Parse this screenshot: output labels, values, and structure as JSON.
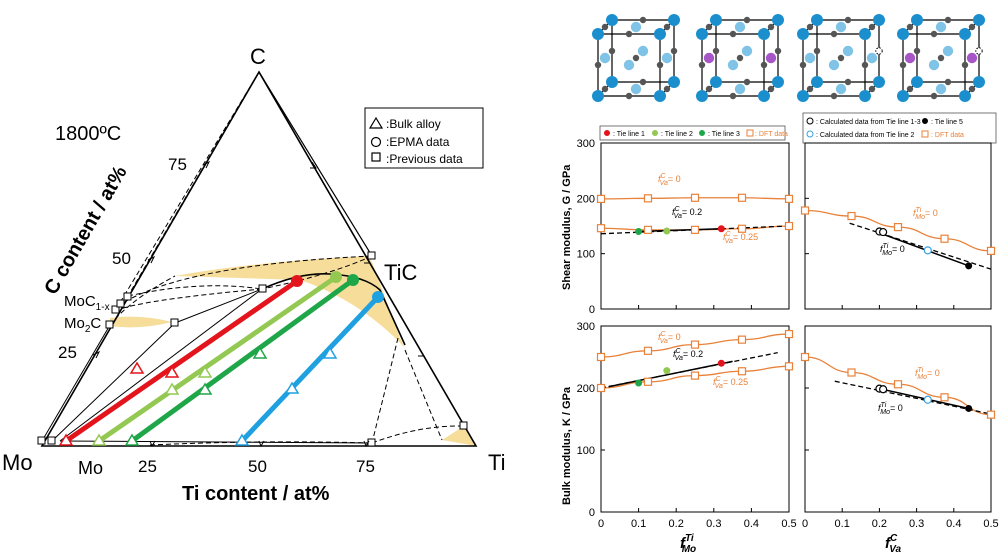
{
  "ternary": {
    "temperature_label": "1800ºC",
    "vertex_C": "C",
    "vertex_Mo": "Mo",
    "vertex_Ti": "Ti",
    "mo_bottom_label": "Mo",
    "phase_TiC": "TiC",
    "phase_MoC": "MoC",
    "phase_MoC_sub": "1-x",
    "phase_Mo2C_a": "Mo",
    "phase_Mo2C_sub": "2",
    "phase_Mo2C_b": "C",
    "x_axis_label": "Ti content / at%",
    "y_axis_label": "C content / at%",
    "bottom_ticks": [
      "25",
      "50",
      "75"
    ],
    "side_ticks": [
      "75",
      "50",
      "25"
    ],
    "legend": [
      {
        "marker": "triangle",
        "label": ":Bulk alloy"
      },
      {
        "marker": "circle",
        "label": ":EPMA data"
      },
      {
        "marker": "square",
        "label": ":Previous data"
      }
    ],
    "tie_line_colors": [
      "#e3141b",
      "#93c952",
      "#1fa648",
      "#1fa0e0"
    ],
    "two_phase_fill": "#f7dd9a"
  },
  "panels": {
    "legend_left": [
      {
        "marker": "filled-circle",
        "color": "#e3141b",
        "label": ": Tie line 1"
      },
      {
        "marker": "filled-circle",
        "color": "#93c952",
        "label": ": Tie line 2"
      },
      {
        "marker": "filled-circle",
        "color": "#1fa648",
        "label": ": Tie line 3"
      },
      {
        "marker": "open-square",
        "color": "#e8823a",
        "label": ": DFT data"
      }
    ],
    "legend_right": [
      {
        "marker": "open-circle",
        "color": "#000000",
        "label": ": Calculated data from Tie line 1-3"
      },
      {
        "marker": "filled-circle",
        "color": "#000000",
        "label": ": Tie line 5"
      },
      {
        "marker": "open-circle",
        "color": "#3aa0e0",
        "label": ": Calculated data from Tie line 2"
      },
      {
        "marker": "open-square",
        "color": "#e8823a",
        "label": ": DFT data"
      }
    ],
    "ylabel_top": "Shear modulus, G / GPa",
    "ylabel_bottom": "Bulk modulus, K / GPa",
    "xlabel_left_f": "f",
    "xlabel_left_sup": "Ti",
    "xlabel_left_sub": "Mo",
    "xlabel_right_f": "f",
    "xlabel_right_sup": "C",
    "xlabel_right_sub": "Va",
    "y_ticks": [
      "0",
      "100",
      "200",
      "300"
    ],
    "x_ticks": [
      "0",
      "0.1",
      "0.2",
      "0.3",
      "0.4",
      "0.5"
    ],
    "annot_va0": "= 0",
    "annot_va02": "= 0.2",
    "annot_va025": "= 0.25",
    "annot_mo0": "= 0",
    "annot_f": "f",
    "annot_C": "C",
    "annot_Va": "Va",
    "annot_Ti": "Ti",
    "annot_Mo": "Mo",
    "dft_color": "#e8823a"
  },
  "crystals": {
    "count": 4,
    "corner_atom_color": "#1b8fce",
    "face_atom_color": "#7fc3e6",
    "carbon_color": "#555555",
    "mo_atom_color": "#a855c8"
  },
  "chart_data": [
    {
      "type": "scatter",
      "title": "",
      "xlabel": "f^Ti_Mo",
      "ylabel": "Shear modulus, G / GPa",
      "xlim": [
        0,
        0.5
      ],
      "ylim": [
        0,
        300
      ],
      "series": [
        {
          "name": ": DFT data",
          "points": [
            [
              0,
              199
            ],
            [
              0.125,
              200
            ],
            [
              0.25,
              201
            ],
            [
              0.375,
              201
            ],
            [
              0.5,
              199
            ]
          ]
        },
        {
          "name": ": DFT data",
          "points": [
            [
              0,
              146
            ],
            [
              0.125,
              143
            ],
            [
              0.25,
              143
            ],
            [
              0.375,
              145
            ],
            [
              0.5,
              150
            ]
          ]
        },
        {
          "name": ": Tie line 1",
          "points": [
            [
              0.32,
              145
            ]
          ]
        },
        {
          "name": ": Tie line 2",
          "points": [
            [
              0.175,
              141
            ]
          ]
        },
        {
          "name": ": Tie line 3",
          "points": [
            [
              0.1,
              140
            ]
          ]
        }
      ]
    },
    {
      "type": "scatter",
      "title": "",
      "xlabel": "f^C_Va",
      "ylabel": "Shear modulus, G / GPa",
      "xlim": [
        0,
        0.5
      ],
      "ylim": [
        0,
        300
      ],
      "series": [
        {
          "name": ": DFT data",
          "points": [
            [
              0,
              178
            ],
            [
              0.125,
              168
            ],
            [
              0.25,
              148
            ],
            [
              0.375,
              127
            ],
            [
              0.5,
              105
            ]
          ]
        },
        {
          "name": ": Calculated data from Tie line 1-3",
          "points": [
            [
              0.2,
              140
            ],
            [
              0.21,
              139
            ]
          ]
        },
        {
          "name": ": Calculated data from Tie line 2",
          "points": [
            [
              0.33,
              106
            ]
          ]
        },
        {
          "name": ": Tie line 5",
          "points": [
            [
              0.44,
              78
            ]
          ]
        }
      ]
    },
    {
      "type": "scatter",
      "title": "",
      "xlabel": "f^Ti_Mo",
      "ylabel": "Bulk modulus, K / GPa",
      "xlim": [
        0,
        0.5
      ],
      "ylim": [
        0,
        300
      ],
      "series": [
        {
          "name": ": DFT data",
          "points": [
            [
              0,
              250
            ],
            [
              0.125,
              260
            ],
            [
              0.25,
              270
            ],
            [
              0.375,
              278
            ],
            [
              0.5,
              287
            ]
          ]
        },
        {
          "name": ": DFT data",
          "points": [
            [
              0,
              200
            ],
            [
              0.125,
              210
            ],
            [
              0.25,
              220
            ],
            [
              0.375,
              227
            ],
            [
              0.5,
              235
            ]
          ]
        },
        {
          "name": ": Tie line 1",
          "points": [
            [
              0.32,
              240
            ]
          ]
        },
        {
          "name": ": Tie line 2",
          "points": [
            [
              0.175,
              228
            ]
          ]
        },
        {
          "name": ": Tie line 3",
          "points": [
            [
              0.1,
              208
            ]
          ]
        }
      ]
    },
    {
      "type": "scatter",
      "title": "",
      "xlabel": "f^C_Va",
      "ylabel": "Bulk modulus, K / GPa",
      "xlim": [
        0,
        0.5
      ],
      "ylim": [
        0,
        300
      ],
      "series": [
        {
          "name": ": DFT data",
          "points": [
            [
              0,
              250
            ],
            [
              0.125,
              225
            ],
            [
              0.25,
              206
            ],
            [
              0.375,
              185
            ],
            [
              0.5,
              157
            ]
          ]
        },
        {
          "name": ": Calculated data from Tie line 1-3",
          "points": [
            [
              0.2,
              199
            ],
            [
              0.21,
              198
            ]
          ]
        },
        {
          "name": ": Calculated data from Tie line 2",
          "points": [
            [
              0.33,
              181
            ]
          ]
        },
        {
          "name": ": Tie line 5",
          "points": [
            [
              0.44,
              167
            ]
          ]
        }
      ]
    }
  ]
}
